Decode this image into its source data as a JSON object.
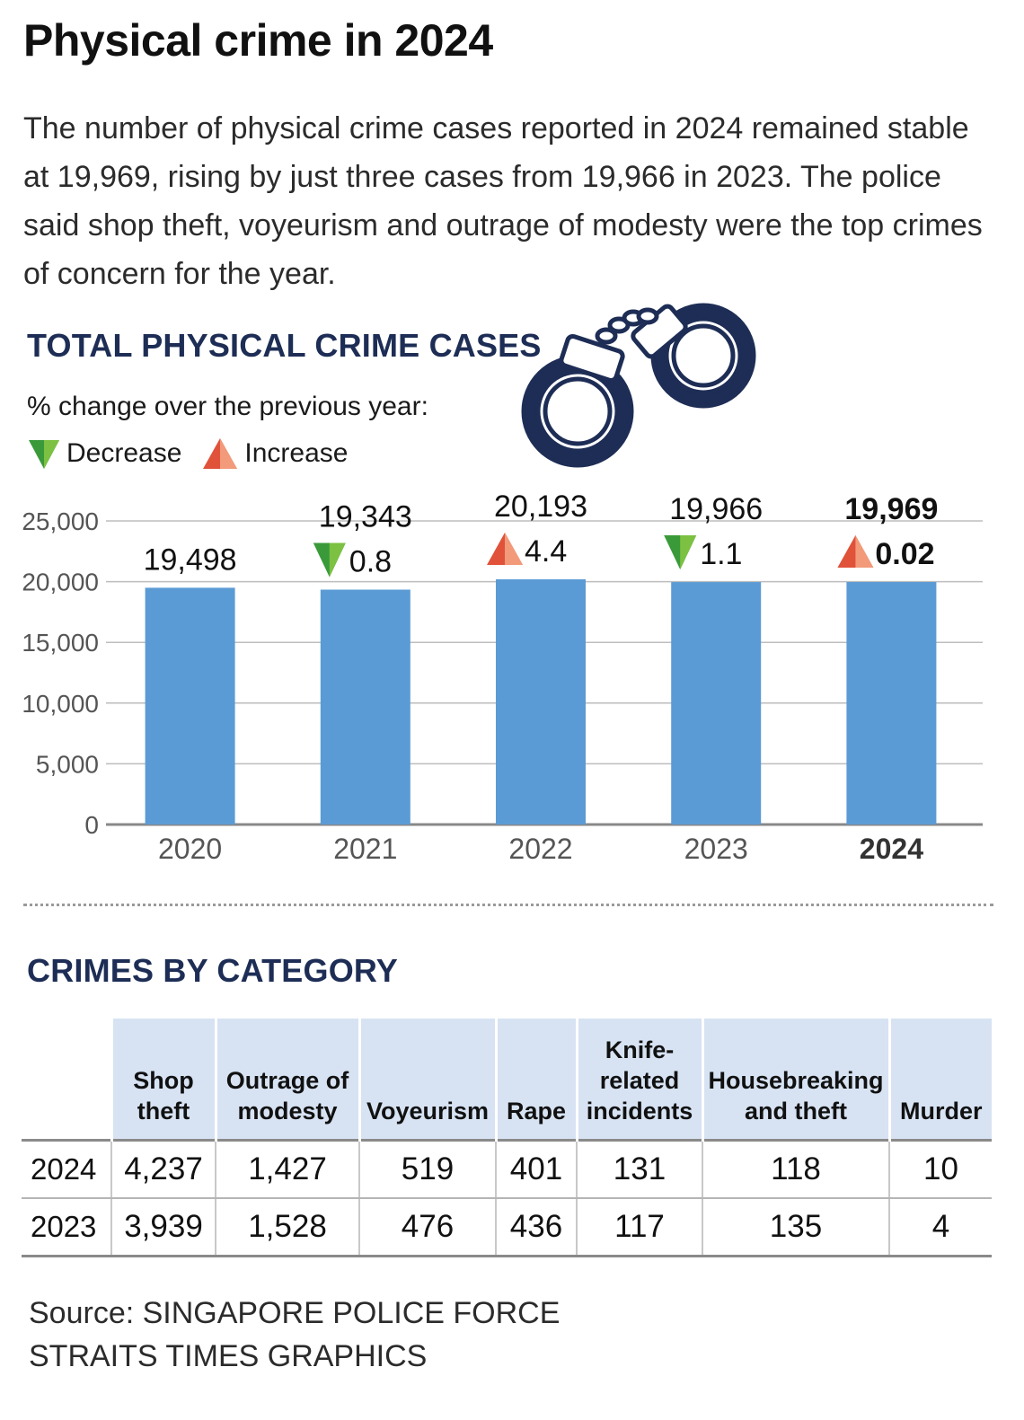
{
  "title": "Physical crime in 2024",
  "intro": "The number of physical crime cases reported in 2024 remained stable at 19,969, rising by just three cases from 19,966 in 2023. The police said shop theft, voyeurism and outrage of modesty were the top crimes of concern for the year.",
  "total_section": {
    "heading": "TOTAL PHYSICAL CRIME CASES",
    "legend_caption": "% change over the previous year:",
    "decrease_label": "Decrease",
    "increase_label": "Increase",
    "decrease_color": "#3a9a3a",
    "increase_color": "#e0523a"
  },
  "chart_data": {
    "type": "bar",
    "title": "TOTAL PHYSICAL CRIME CASES",
    "categories": [
      "2020",
      "2021",
      "2022",
      "2023",
      "2024"
    ],
    "values": [
      19498,
      19343,
      20193,
      19966,
      19969
    ],
    "value_labels": [
      "19,498",
      "19,343",
      "20,193",
      "19,966",
      "19,969"
    ],
    "changes": [
      null,
      {
        "dir": "down",
        "pct": "0.8"
      },
      {
        "dir": "up",
        "pct": "4.4"
      },
      {
        "dir": "down",
        "pct": "1.1"
      },
      {
        "dir": "up",
        "pct": "0.02"
      }
    ],
    "highlight_category": "2024",
    "ylim": [
      0,
      25000
    ],
    "yticks": [
      0,
      5000,
      10000,
      15000,
      20000,
      25000
    ],
    "ytick_labels": [
      "0",
      "5,000",
      "10,000",
      "15,000",
      "20,000",
      "25,000"
    ],
    "xlabel": "",
    "ylabel": "",
    "grid": true,
    "bar_color": "#5b9bd5"
  },
  "category_section": {
    "heading": "CRIMES BY CATEGORY",
    "columns": [
      [
        "Shop",
        "theft"
      ],
      [
        "Outrage of",
        "modesty"
      ],
      [
        "Voyeurism"
      ],
      [
        "Rape"
      ],
      [
        "Knife-",
        "related",
        "incidents"
      ],
      [
        "Housebreaking",
        "and theft"
      ],
      [
        "Murder"
      ]
    ],
    "rows": [
      {
        "year": "2024",
        "values": [
          "4,237",
          "1,427",
          "519",
          "401",
          "131",
          "118",
          "10"
        ]
      },
      {
        "year": "2023",
        "values": [
          "3,939",
          "1,528",
          "476",
          "436",
          "117",
          "135",
          "4"
        ]
      }
    ]
  },
  "source": {
    "line1": "Source: SINGAPORE POLICE FORCE",
    "line2": "STRAITS TIMES GRAPHICS"
  }
}
